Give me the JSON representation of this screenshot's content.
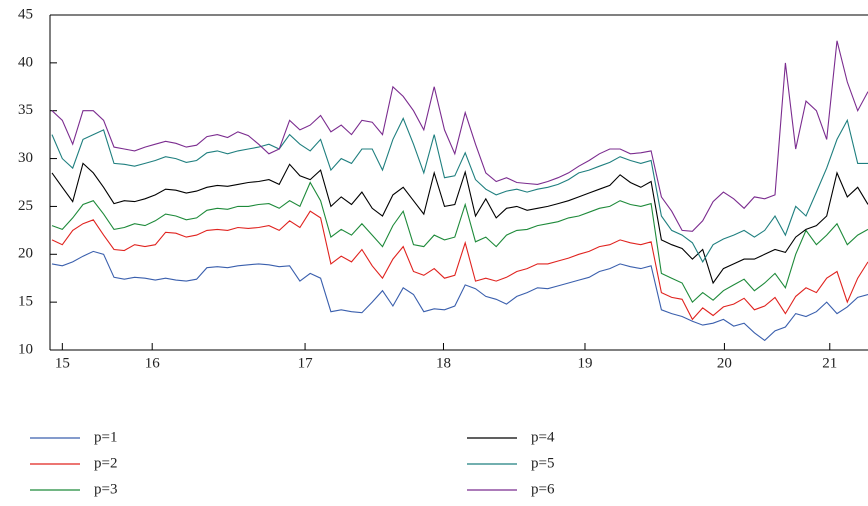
{
  "chart_data": {
    "type": "line",
    "x": [
      1,
      2,
      3,
      4,
      5,
      6,
      7,
      8,
      9,
      10,
      11,
      12,
      13,
      14,
      15,
      16,
      17,
      18,
      19,
      20,
      21,
      22,
      23,
      24,
      25,
      26,
      27,
      28,
      29,
      30,
      31,
      32,
      33,
      34,
      35,
      36,
      37,
      38,
      39,
      40,
      41,
      42,
      43,
      44,
      45,
      46,
      47,
      48,
      49,
      50,
      51,
      52,
      53,
      54,
      55,
      56,
      57,
      58,
      59,
      60,
      61,
      62,
      63,
      64,
      65,
      66,
      67,
      68,
      69,
      70,
      71,
      72,
      73,
      74,
      75,
      76,
      77,
      78,
      79,
      80
    ],
    "xlim": [
      1,
      80
    ],
    "xticks": [
      {
        "value": 2,
        "label": "15"
      },
      {
        "value": 10.7,
        "label": "16"
      },
      {
        "value": 25.5,
        "label": "17"
      },
      {
        "value": 38.9,
        "label": "18"
      },
      {
        "value": 52.6,
        "label": "19"
      },
      {
        "value": 66.1,
        "label": "20"
      },
      {
        "value": 76.3,
        "label": "21"
      }
    ],
    "ylim": [
      10,
      45
    ],
    "yticks": [
      10,
      15,
      20,
      25,
      30,
      35,
      40,
      45
    ],
    "series": [
      {
        "name": "p=1",
        "color": "#3a5fad",
        "values": [
          19,
          18.8,
          19.2,
          19.8,
          20.3,
          20,
          17.6,
          17.4,
          17.6,
          17.5,
          17.3,
          17.5,
          17.3,
          17.2,
          17.4,
          18.6,
          18.7,
          18.6,
          18.8,
          18.9,
          19,
          18.9,
          18.7,
          18.8,
          17.2,
          18,
          17.5,
          14,
          14.2,
          14,
          13.9,
          15,
          16.2,
          14.6,
          16.5,
          15.8,
          14,
          14.3,
          14.2,
          14.6,
          16.8,
          16.4,
          15.6,
          15.3,
          14.8,
          15.6,
          16,
          16.5,
          16.4,
          16.7,
          17,
          17.3,
          17.6,
          18.2,
          18.5,
          19,
          18.7,
          18.5,
          18.8,
          14.2,
          13.8,
          13.5,
          13,
          12.6,
          12.8,
          13.2,
          12.5,
          12.8,
          11.8,
          11,
          12,
          12.4,
          13.8,
          13.5,
          14,
          15,
          13.8,
          14.5,
          15.5,
          15.8
        ]
      },
      {
        "name": "p=2",
        "color": "#e0231f",
        "values": [
          21.5,
          21,
          22.5,
          23.2,
          23.6,
          22,
          20.5,
          20.4,
          21,
          20.8,
          21,
          22.3,
          22.2,
          21.8,
          22,
          22.5,
          22.6,
          22.5,
          22.8,
          22.7,
          22.8,
          23,
          22.5,
          23.5,
          22.8,
          24.5,
          23.8,
          19,
          19.8,
          19.2,
          20.5,
          18.8,
          17.5,
          19.5,
          20.8,
          18.2,
          17.8,
          18.5,
          17.5,
          17.8,
          21.2,
          17.2,
          17.5,
          17.2,
          17.6,
          18.2,
          18.5,
          19,
          19,
          19.3,
          19.6,
          20,
          20.3,
          20.8,
          21,
          21.5,
          21.2,
          21,
          21.3,
          16,
          15.5,
          15.3,
          13.2,
          14.4,
          13.6,
          14.5,
          14.8,
          15.4,
          14.2,
          14.6,
          15.5,
          13.8,
          15.6,
          16.5,
          16,
          17.5,
          18.2,
          15,
          17.5,
          19.2
        ]
      },
      {
        "name": "p=3",
        "color": "#1e8a3a",
        "values": [
          23,
          22.6,
          23.8,
          25.2,
          25.6,
          24.2,
          22.6,
          22.8,
          23.2,
          23,
          23.5,
          24.2,
          24,
          23.6,
          23.8,
          24.6,
          24.8,
          24.7,
          25,
          25,
          25.2,
          25.3,
          24.8,
          25.6,
          25,
          27.5,
          25.6,
          21.8,
          22.6,
          22,
          23.2,
          22,
          20.8,
          23,
          24.5,
          21,
          20.8,
          22,
          21.5,
          21.8,
          25.2,
          21.3,
          21.8,
          20.8,
          22,
          22.5,
          22.6,
          23,
          23.2,
          23.4,
          23.8,
          24,
          24.4,
          24.8,
          25,
          25.6,
          25.2,
          25,
          25.3,
          18,
          17.5,
          17,
          15,
          16,
          15.2,
          16.2,
          16.8,
          17.4,
          16.2,
          17,
          18,
          16.5,
          20,
          22.5,
          21,
          22,
          23.2,
          21,
          22,
          22.6
        ]
      },
      {
        "name": "p=4",
        "color": "#000000",
        "values": [
          28.5,
          27,
          25.5,
          29.5,
          28.5,
          27,
          25.3,
          25.6,
          25.5,
          25.8,
          26.2,
          26.8,
          26.7,
          26.4,
          26.6,
          27,
          27.2,
          27.1,
          27.3,
          27.5,
          27.6,
          27.8,
          27.3,
          29.4,
          28.2,
          27.8,
          28.8,
          25,
          26,
          25.2,
          26.5,
          24.8,
          24,
          26.2,
          27,
          25.6,
          24.2,
          28.5,
          25,
          25.2,
          28.6,
          24,
          25.8,
          23.8,
          24.8,
          25,
          24.6,
          24.8,
          25,
          25.3,
          25.6,
          26,
          26.4,
          26.8,
          27.2,
          28.3,
          27.5,
          27,
          27.6,
          21.5,
          21,
          20.6,
          19.5,
          20.5,
          17,
          18.5,
          19,
          19.5,
          19.5,
          20,
          20.5,
          20.2,
          21.8,
          22.6,
          23,
          24,
          28.5,
          26,
          27,
          25.2
        ]
      },
      {
        "name": "p=5",
        "color": "#1f7f7f",
        "values": [
          32.5,
          30,
          29,
          32,
          32.5,
          33,
          29.5,
          29.4,
          29.2,
          29.5,
          29.8,
          30.2,
          30,
          29.6,
          29.8,
          30.6,
          30.8,
          30.5,
          30.8,
          31,
          31.2,
          31.5,
          31,
          32.5,
          31.5,
          30.8,
          32,
          28.8,
          30,
          29.5,
          31,
          31,
          28.8,
          32,
          34.2,
          31.5,
          28.5,
          32.5,
          28,
          28.2,
          30.6,
          27.8,
          26.8,
          26.2,
          26.6,
          26.8,
          26.5,
          26.8,
          27,
          27.3,
          27.8,
          28.5,
          28.8,
          29.2,
          29.6,
          30.2,
          29.8,
          29.5,
          29.8,
          24,
          22.5,
          22,
          21.2,
          19.2,
          21,
          21.6,
          22,
          22.5,
          21.8,
          22.5,
          24,
          22,
          25,
          24,
          26.5,
          29,
          32,
          34,
          29.5,
          29.5
        ]
      },
      {
        "name": "p=6",
        "color": "#7b2c8f",
        "values": [
          35,
          34,
          31.5,
          35,
          35,
          34,
          31.2,
          31,
          30.8,
          31.2,
          31.5,
          31.8,
          31.6,
          31.2,
          31.4,
          32.3,
          32.5,
          32.2,
          32.8,
          32.4,
          31.5,
          30.5,
          31,
          34,
          33,
          33.5,
          34.5,
          32.8,
          33.5,
          32.5,
          34,
          33.8,
          32.5,
          37.5,
          36.5,
          35,
          33,
          37.5,
          33,
          30.5,
          34.8,
          31.5,
          28.5,
          27.6,
          28,
          27.5,
          27.4,
          27.3,
          27.6,
          28,
          28.5,
          29.2,
          29.8,
          30.5,
          31,
          31,
          30.5,
          30.6,
          30.8,
          26,
          24.5,
          22.5,
          22.4,
          23.5,
          25.5,
          26.5,
          25.8,
          24.8,
          26,
          25.8,
          26.2,
          40,
          31,
          36,
          35,
          32,
          42.3,
          38,
          35,
          37
        ]
      }
    ]
  }
}
